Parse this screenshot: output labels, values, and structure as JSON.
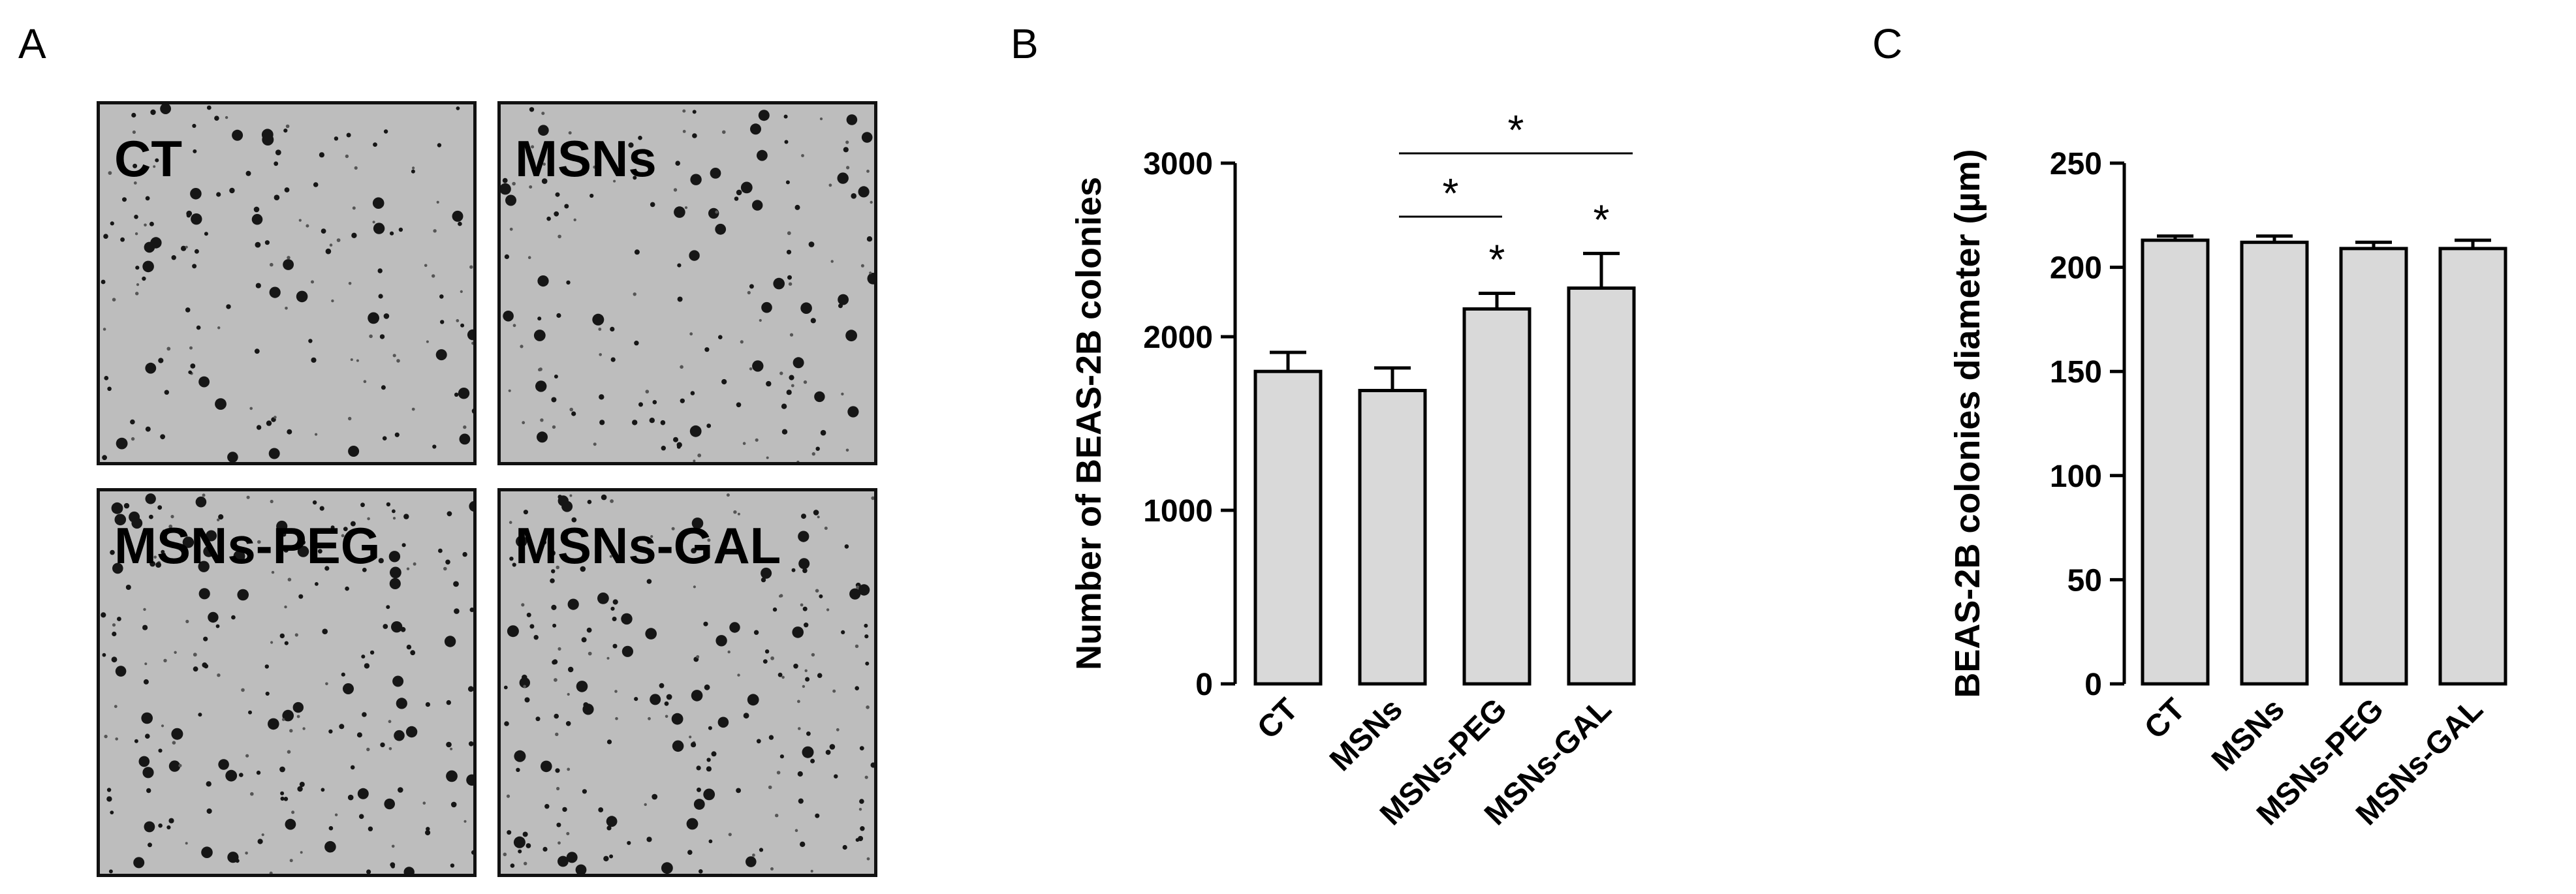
{
  "panels": {
    "a": {
      "letter": "A",
      "plates": [
        {
          "label": "CT"
        },
        {
          "label": "MSNs"
        },
        {
          "label": "MSNs-PEG"
        },
        {
          "label": "MSNs-GAL"
        }
      ]
    },
    "b": {
      "letter": "B"
    },
    "c": {
      "letter": "C"
    }
  },
  "chart_data": [
    {
      "type": "bar",
      "panel": "B",
      "title": "",
      "xlabel": "",
      "ylabel": "Number of BEAS-2B colonies",
      "categories": [
        "CT",
        "MSNs",
        "MSNs-PEG",
        "MSNs-GAL"
      ],
      "values": [
        1800,
        1690,
        2160,
        2280
      ],
      "errors": [
        110,
        130,
        90,
        200
      ],
      "ylim": [
        0,
        3000
      ],
      "yticks": [
        0,
        1000,
        2000,
        3000
      ],
      "bar_color": "#d9d9d9",
      "significance": {
        "symbol": "*",
        "bars_marked": [
          "MSNs-PEG",
          "MSNs-GAL"
        ],
        "brackets": [
          {
            "from": "MSNs",
            "to": "MSNs-PEG"
          },
          {
            "from": "MSNs",
            "to": "MSNs-GAL"
          }
        ]
      }
    },
    {
      "type": "bar",
      "panel": "C",
      "title": "",
      "xlabel": "",
      "ylabel": "BEAS-2B colonies diameter (µm)",
      "categories": [
        "CT",
        "MSNs",
        "MSNs-PEG",
        "MSNs-GAL"
      ],
      "values": [
        213,
        212,
        209,
        209
      ],
      "errors": [
        2,
        3,
        3,
        4
      ],
      "ylim": [
        0,
        250
      ],
      "yticks": [
        0,
        50,
        100,
        150,
        200,
        250
      ],
      "bar_color": "#d9d9d9"
    }
  ]
}
